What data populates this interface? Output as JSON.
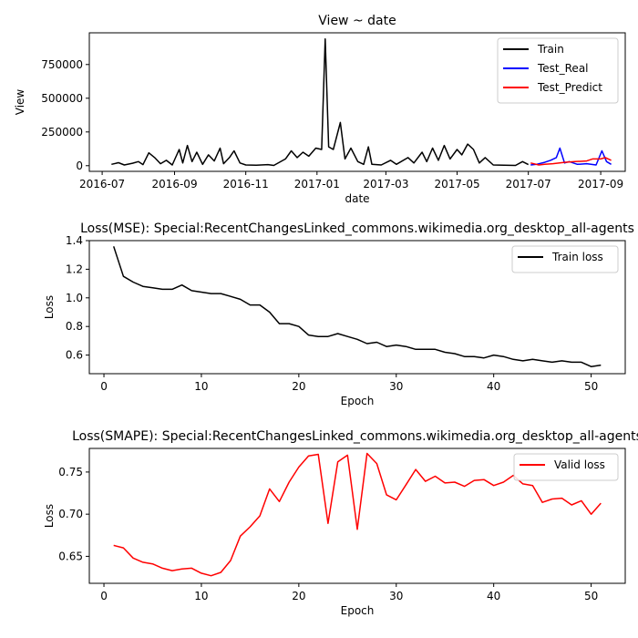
{
  "chart_data": [
    {
      "type": "line",
      "title": "View ~ date",
      "xlabel": "date",
      "ylabel": "View",
      "x_axis": "date",
      "xlim": [
        "2016-06-20",
        "2017-09-22"
      ],
      "ylim": [
        -42000,
        985000
      ],
      "xticks": [
        "2016-07-01",
        "2016-09-01",
        "2016-11-01",
        "2017-01-01",
        "2017-03-01",
        "2017-05-01",
        "2017-07-01",
        "2017-09-01"
      ],
      "xtick_labels": [
        "2016-07",
        "2016-09",
        "2016-11",
        "2017-01",
        "2017-03",
        "2017-05",
        "2017-07",
        "2017-09"
      ],
      "yticks": [
        0,
        250000,
        500000,
        750000
      ],
      "ytick_labels": [
        "0",
        "250000",
        "500000",
        "750000"
      ],
      "legend_position": "top-right",
      "grid": false,
      "series": [
        {
          "name": "Train",
          "color": "#000000",
          "points": [
            [
              "2016-07-09",
              10000
            ],
            [
              "2016-07-15",
              22000
            ],
            [
              "2016-07-20",
              5000
            ],
            [
              "2016-07-27",
              18000
            ],
            [
              "2016-08-01",
              30000
            ],
            [
              "2016-08-05",
              8000
            ],
            [
              "2016-08-10",
              95000
            ],
            [
              "2016-08-15",
              60000
            ],
            [
              "2016-08-20",
              15000
            ],
            [
              "2016-08-25",
              40000
            ],
            [
              "2016-08-30",
              5000
            ],
            [
              "2016-09-05",
              120000
            ],
            [
              "2016-09-08",
              20000
            ],
            [
              "2016-09-12",
              150000
            ],
            [
              "2016-09-16",
              30000
            ],
            [
              "2016-09-20",
              100000
            ],
            [
              "2016-09-25",
              10000
            ],
            [
              "2016-09-30",
              80000
            ],
            [
              "2016-10-05",
              35000
            ],
            [
              "2016-10-10",
              130000
            ],
            [
              "2016-10-13",
              15000
            ],
            [
              "2016-10-18",
              60000
            ],
            [
              "2016-10-22",
              110000
            ],
            [
              "2016-10-27",
              20000
            ],
            [
              "2016-11-01",
              5000
            ],
            [
              "2016-11-10",
              3000
            ],
            [
              "2016-11-20",
              8000
            ],
            [
              "2016-11-25",
              2000
            ],
            [
              "2016-12-05",
              50000
            ],
            [
              "2016-12-10",
              110000
            ],
            [
              "2016-12-15",
              60000
            ],
            [
              "2016-12-20",
              100000
            ],
            [
              "2016-12-25",
              70000
            ],
            [
              "2016-12-31",
              130000
            ],
            [
              "2017-01-05",
              120000
            ],
            [
              "2017-01-08",
              940000
            ],
            [
              "2017-01-11",
              140000
            ],
            [
              "2017-01-15",
              120000
            ],
            [
              "2017-01-21",
              320000
            ],
            [
              "2017-01-25",
              50000
            ],
            [
              "2017-01-30",
              130000
            ],
            [
              "2017-02-05",
              30000
            ],
            [
              "2017-02-10",
              10000
            ],
            [
              "2017-02-14",
              140000
            ],
            [
              "2017-02-17",
              10000
            ],
            [
              "2017-02-25",
              5000
            ],
            [
              "2017-03-05",
              40000
            ],
            [
              "2017-03-10",
              10000
            ],
            [
              "2017-03-20",
              60000
            ],
            [
              "2017-03-25",
              20000
            ],
            [
              "2017-04-01",
              100000
            ],
            [
              "2017-04-05",
              30000
            ],
            [
              "2017-04-10",
              130000
            ],
            [
              "2017-04-15",
              40000
            ],
            [
              "2017-04-20",
              150000
            ],
            [
              "2017-04-25",
              50000
            ],
            [
              "2017-05-01",
              120000
            ],
            [
              "2017-05-05",
              80000
            ],
            [
              "2017-05-10",
              160000
            ],
            [
              "2017-05-15",
              120000
            ],
            [
              "2017-05-20",
              20000
            ],
            [
              "2017-05-25",
              60000
            ],
            [
              "2017-06-01",
              5000
            ],
            [
              "2017-06-10",
              3000
            ],
            [
              "2017-06-20",
              2000
            ],
            [
              "2017-06-26",
              30000
            ],
            [
              "2017-07-01",
              8000
            ]
          ]
        },
        {
          "name": "Test_Real",
          "color": "#0000ff",
          "points": [
            [
              "2017-07-03",
              5000
            ],
            [
              "2017-07-08",
              10000
            ],
            [
              "2017-07-15",
              25000
            ],
            [
              "2017-07-20",
              40000
            ],
            [
              "2017-07-25",
              60000
            ],
            [
              "2017-07-28",
              130000
            ],
            [
              "2017-08-01",
              20000
            ],
            [
              "2017-08-05",
              30000
            ],
            [
              "2017-08-12",
              10000
            ],
            [
              "2017-08-20",
              15000
            ],
            [
              "2017-08-28",
              5000
            ],
            [
              "2017-09-02",
              110000
            ],
            [
              "2017-09-06",
              30000
            ],
            [
              "2017-09-10",
              10000
            ]
          ]
        },
        {
          "name": "Test_Predict",
          "color": "#ff0000",
          "points": [
            [
              "2017-07-03",
              20000
            ],
            [
              "2017-07-10",
              5000
            ],
            [
              "2017-07-15",
              10000
            ],
            [
              "2017-07-22",
              15000
            ],
            [
              "2017-08-01",
              25000
            ],
            [
              "2017-08-10",
              30000
            ],
            [
              "2017-08-20",
              35000
            ],
            [
              "2017-08-25",
              50000
            ],
            [
              "2017-09-01",
              50000
            ],
            [
              "2017-09-05",
              60000
            ],
            [
              "2017-09-10",
              40000
            ]
          ]
        }
      ]
    },
    {
      "type": "line",
      "title": "Loss(MSE): Special:RecentChangesLinked_commons.wikimedia.org_desktop_all-agents",
      "xlabel": "Epoch",
      "ylabel": "Loss",
      "xlim": [
        -1.5,
        53.5
      ],
      "ylim": [
        0.47,
        1.4
      ],
      "xticks": [
        0,
        10,
        20,
        30,
        40,
        50
      ],
      "xtick_labels": [
        "0",
        "10",
        "20",
        "30",
        "40",
        "50"
      ],
      "yticks": [
        0.6,
        0.8,
        1.0,
        1.2,
        1.4
      ],
      "ytick_labels": [
        "0.6",
        "0.8",
        "1.0",
        "1.2",
        "1.4"
      ],
      "legend_position": "top-right",
      "grid": false,
      "series": [
        {
          "name": "Train loss",
          "color": "#000000",
          "x": [
            1,
            2,
            3,
            4,
            5,
            6,
            7,
            8,
            9,
            10,
            11,
            12,
            13,
            14,
            15,
            16,
            17,
            18,
            19,
            20,
            21,
            22,
            23,
            24,
            25,
            26,
            27,
            28,
            29,
            30,
            31,
            32,
            33,
            34,
            35,
            36,
            37,
            38,
            39,
            40,
            41,
            42,
            43,
            44,
            45,
            46,
            47,
            48,
            49,
            50,
            51
          ],
          "values": [
            1.36,
            1.15,
            1.11,
            1.08,
            1.07,
            1.06,
            1.06,
            1.09,
            1.05,
            1.04,
            1.03,
            1.03,
            1.01,
            0.99,
            0.95,
            0.95,
            0.9,
            0.82,
            0.82,
            0.8,
            0.74,
            0.73,
            0.73,
            0.75,
            0.73,
            0.71,
            0.68,
            0.69,
            0.66,
            0.67,
            0.66,
            0.64,
            0.64,
            0.64,
            0.62,
            0.61,
            0.59,
            0.59,
            0.58,
            0.6,
            0.59,
            0.57,
            0.56,
            0.57,
            0.56,
            0.55,
            0.56,
            0.55,
            0.55,
            0.52,
            0.53
          ]
        }
      ]
    },
    {
      "type": "line",
      "title": "Loss(SMAPE): Special:RecentChangesLinked_commons.wikimedia.org_desktop_all-agents",
      "xlabel": "Epoch",
      "ylabel": "Loss",
      "xlim": [
        -1.5,
        53.5
      ],
      "ylim": [
        0.618,
        0.778
      ],
      "xticks": [
        0,
        10,
        20,
        30,
        40,
        50
      ],
      "xtick_labels": [
        "0",
        "10",
        "20",
        "30",
        "40",
        "50"
      ],
      "yticks": [
        0.65,
        0.7,
        0.75
      ],
      "ytick_labels": [
        "0.65",
        "0.70",
        "0.75"
      ],
      "legend_position": "top-right",
      "grid": false,
      "series": [
        {
          "name": "Valid loss",
          "color": "#ff0000",
          "x": [
            1,
            2,
            3,
            4,
            5,
            6,
            7,
            8,
            9,
            10,
            11,
            12,
            13,
            14,
            15,
            16,
            17,
            18,
            19,
            20,
            21,
            22,
            23,
            24,
            25,
            26,
            27,
            28,
            29,
            30,
            31,
            32,
            33,
            34,
            35,
            36,
            37,
            38,
            39,
            40,
            41,
            42,
            43,
            44,
            45,
            46,
            47,
            48,
            49,
            50,
            51
          ],
          "values": [
            0.663,
            0.66,
            0.648,
            0.643,
            0.641,
            0.636,
            0.633,
            0.635,
            0.636,
            0.63,
            0.627,
            0.631,
            0.645,
            0.674,
            0.685,
            0.698,
            0.73,
            0.715,
            0.738,
            0.756,
            0.769,
            0.771,
            0.689,
            0.762,
            0.77,
            0.682,
            0.772,
            0.76,
            0.723,
            0.717,
            0.735,
            0.753,
            0.739,
            0.745,
            0.737,
            0.738,
            0.733,
            0.74,
            0.741,
            0.734,
            0.738,
            0.746,
            0.736,
            0.734,
            0.714,
            0.718,
            0.719,
            0.711,
            0.716,
            0.7,
            0.713
          ]
        }
      ]
    }
  ]
}
